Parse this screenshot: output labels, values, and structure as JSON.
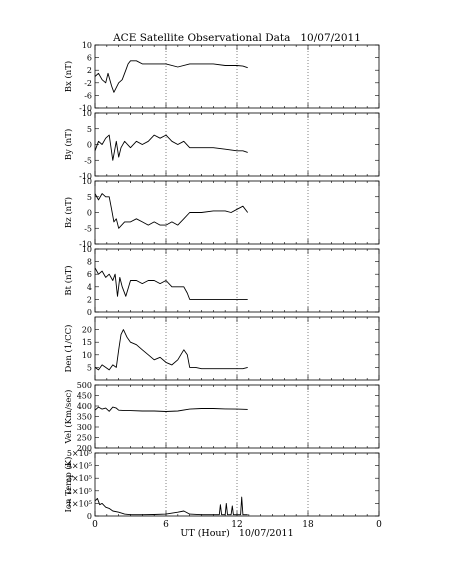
{
  "title": "ACE Satellite Observational Data   10/07/2011",
  "xlabel": "UT (Hour)   10/07/2011",
  "xticks": [
    "0",
    "6",
    "12",
    "18",
    "0"
  ],
  "chart_data": [
    {
      "type": "line",
      "ylabel": "Bx (nT)",
      "ylim": [
        -10,
        10
      ],
      "yticks": [
        "10",
        "6",
        "2",
        "-2",
        "-6",
        "-10"
      ],
      "ytick_values": [
        10,
        6,
        2,
        -2,
        -6,
        -10
      ],
      "x": [
        0,
        0.3,
        0.6,
        0.9,
        1.1,
        1.4,
        1.6,
        2.0,
        2.3,
        2.6,
        2.8,
        3.0,
        3.5,
        4.0,
        5.0,
        6.0,
        7.0,
        8.0,
        9.0,
        10.0,
        11.0,
        12.0,
        12.5,
        12.9
      ],
      "values": [
        0,
        1,
        -1,
        -2,
        1,
        -3,
        -5,
        -2,
        -1,
        2,
        4,
        5,
        5,
        4,
        4,
        4,
        3,
        4,
        4,
        4,
        3.5,
        3.5,
        3.3,
        2.8
      ],
      "grid": true
    },
    {
      "type": "line",
      "ylabel": "By (nT)",
      "ylim": [
        -10,
        10
      ],
      "yticks": [
        "10",
        "5",
        "0",
        "-5",
        "-10"
      ],
      "ytick_values": [
        10,
        5,
        0,
        -5,
        -10
      ],
      "x": [
        0,
        0.3,
        0.6,
        0.9,
        1.2,
        1.5,
        1.8,
        2.0,
        2.2,
        2.5,
        3.0,
        3.5,
        4.0,
        4.5,
        5.0,
        5.5,
        6.0,
        6.5,
        7.0,
        7.5,
        8.0,
        9.0,
        10.0,
        11.0,
        12.0,
        12.5,
        12.9
      ],
      "values": [
        -2,
        1,
        0,
        2,
        3,
        -5,
        1,
        -4,
        -1,
        1,
        -1,
        1,
        0,
        1,
        3,
        2,
        3,
        1,
        0,
        1,
        -1,
        -1,
        -1,
        -1.5,
        -2,
        -2,
        -2.5
      ],
      "grid": true
    },
    {
      "type": "line",
      "ylabel": "Bz (nT)",
      "ylim": [
        -10,
        10
      ],
      "yticks": [
        "10",
        "5",
        "0",
        "-5",
        "-10"
      ],
      "ytick_values": [
        10,
        5,
        0,
        -5,
        -10
      ],
      "x": [
        0,
        0.3,
        0.6,
        0.9,
        1.2,
        1.4,
        1.6,
        1.8,
        2.0,
        2.5,
        3.0,
        3.5,
        4.0,
        4.5,
        5.0,
        5.5,
        6.0,
        6.5,
        7.0,
        7.5,
        8.0,
        9.0,
        10.0,
        11.0,
        11.5,
        12.0,
        12.5,
        12.9
      ],
      "values": [
        6,
        4,
        6,
        5,
        5,
        1,
        -3,
        -2,
        -5,
        -3,
        -3,
        -2,
        -3,
        -4,
        -3,
        -4,
        -4,
        -3,
        -4,
        -2,
        0,
        0,
        0.5,
        0.5,
        0,
        1,
        2,
        0
      ],
      "grid": true
    },
    {
      "type": "line",
      "ylabel": "Bt (nT)",
      "ylim": [
        0,
        10
      ],
      "yticks": [
        "10",
        "8",
        "6",
        "4",
        "2",
        "0"
      ],
      "ytick_values": [
        10,
        8,
        6,
        4,
        2,
        0
      ],
      "x": [
        0,
        0.3,
        0.6,
        0.9,
        1.2,
        1.5,
        1.7,
        1.9,
        2.1,
        2.3,
        2.6,
        3.0,
        3.5,
        4.0,
        4.5,
        5.0,
        5.5,
        6.0,
        6.5,
        7.0,
        7.5,
        7.8,
        8.0,
        9.0,
        10.0,
        11.0,
        12.0,
        12.5,
        12.9
      ],
      "values": [
        7,
        6,
        6.5,
        5.5,
        6,
        5,
        6,
        2.5,
        5.5,
        4,
        2.5,
        5,
        5,
        4.5,
        5,
        5,
        4.5,
        5,
        4,
        4,
        4,
        3,
        2,
        2,
        2,
        2,
        2,
        2,
        2
      ],
      "grid": true
    },
    {
      "type": "line",
      "ylabel": "Den (1/CC)",
      "ylim": [
        0,
        25
      ],
      "yticks": [
        "20",
        "15",
        "10",
        "5"
      ],
      "ytick_values": [
        20,
        15,
        10,
        5
      ],
      "x": [
        0,
        0.3,
        0.6,
        0.9,
        1.2,
        1.5,
        1.8,
        2.0,
        2.2,
        2.4,
        2.7,
        3.0,
        3.5,
        4.0,
        4.5,
        5.0,
        5.5,
        6.0,
        6.5,
        7.0,
        7.5,
        7.8,
        8.0,
        8.5,
        9.0,
        10.0,
        11.0,
        12.0,
        12.5,
        12.9
      ],
      "values": [
        5,
        4,
        6,
        5,
        4,
        6,
        5,
        12,
        18,
        20,
        17,
        15,
        14,
        12,
        10,
        8,
        9,
        7,
        6,
        8,
        12,
        10,
        5,
        5,
        4.5,
        4.5,
        4.5,
        4.5,
        4.5,
        5
      ],
      "grid": true
    },
    {
      "type": "line",
      "ylabel": "Vel (Km/sec)",
      "ylim": [
        200,
        500
      ],
      "yticks": [
        "500",
        "450",
        "400",
        "350",
        "300",
        "250",
        "200"
      ],
      "ytick_values": [
        500,
        450,
        400,
        350,
        300,
        250,
        200
      ],
      "x": [
        0,
        0.3,
        0.6,
        0.9,
        1.2,
        1.5,
        1.8,
        2.0,
        2.5,
        3.0,
        4.0,
        5.0,
        6.0,
        7.0,
        8.0,
        9.0,
        10.0,
        11.0,
        12.0,
        12.9
      ],
      "values": [
        380,
        395,
        385,
        390,
        375,
        395,
        390,
        380,
        378,
        378,
        376,
        376,
        374,
        376,
        385,
        388,
        388,
        386,
        385,
        384
      ],
      "grid": true
    },
    {
      "type": "line",
      "ylabel": "Ion Temp (K)",
      "ylim": [
        0,
        500000
      ],
      "yticks": [
        "5×10⁵",
        "4×10⁵",
        "3×10⁵",
        "2×10⁵",
        "1×10⁵",
        "0"
      ],
      "ytick_values": [
        500000,
        400000,
        300000,
        200000,
        100000,
        0
      ],
      "x": [
        0,
        0.2,
        0.4,
        0.6,
        0.9,
        1.2,
        1.5,
        2.0,
        2.5,
        3.0,
        4.0,
        5.0,
        6.0,
        7.0,
        7.5,
        8.0,
        9.0,
        10.0,
        10.5,
        10.6,
        10.7,
        11.0,
        11.1,
        11.2,
        11.5,
        11.6,
        11.7,
        12.0,
        12.3,
        12.4,
        12.5,
        12.9
      ],
      "values": [
        120000,
        140000,
        90000,
        100000,
        70000,
        60000,
        40000,
        30000,
        15000,
        10000,
        10000,
        12000,
        15000,
        30000,
        40000,
        15000,
        10000,
        10000,
        10000,
        90000,
        10000,
        10000,
        100000,
        10000,
        10000,
        80000,
        10000,
        10000,
        10000,
        150000,
        10000,
        10000
      ],
      "grid": true
    }
  ]
}
